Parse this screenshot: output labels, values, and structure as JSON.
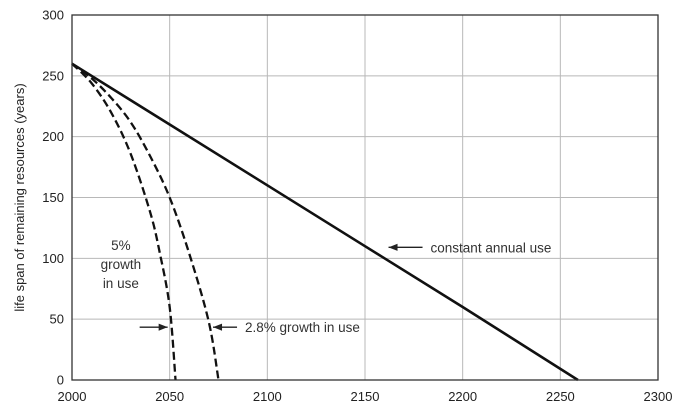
{
  "chart_data": {
    "type": "line",
    "xlabel": "",
    "ylabel": "life span of remaining resources (years)",
    "xlim": [
      2000,
      2300
    ],
    "ylim": [
      0,
      300
    ],
    "x_ticks": [
      2000,
      2050,
      2100,
      2150,
      2200,
      2250,
      2300
    ],
    "y_ticks": [
      0,
      50,
      100,
      150,
      200,
      250,
      300
    ],
    "grid": true,
    "series": [
      {
        "name": "constant annual use",
        "style": "solid",
        "color": "#111111",
        "points": [
          [
            2000,
            260
          ],
          [
            2050,
            210
          ],
          [
            2100,
            160
          ],
          [
            2150,
            110
          ],
          [
            2200,
            60
          ],
          [
            2259,
            0
          ]
        ]
      },
      {
        "name": "2.8% growth in use",
        "style": "dashed",
        "color": "#111111",
        "points": [
          [
            2000,
            260
          ],
          [
            2010,
            248
          ],
          [
            2020,
            232
          ],
          [
            2030,
            212
          ],
          [
            2040,
            184
          ],
          [
            2050,
            150
          ],
          [
            2060,
            104
          ],
          [
            2070,
            48
          ],
          [
            2075,
            0
          ]
        ]
      },
      {
        "name": "5% growth in use",
        "style": "dashed",
        "color": "#111111",
        "points": [
          [
            2000,
            260
          ],
          [
            2010,
            244
          ],
          [
            2020,
            220
          ],
          [
            2030,
            186
          ],
          [
            2040,
            138
          ],
          [
            2045,
            104
          ],
          [
            2050,
            60
          ],
          [
            2053,
            0
          ]
        ]
      }
    ],
    "annotations": [
      {
        "id": "constant",
        "text": "constant annual use"
      },
      {
        "id": "growth5",
        "lines": [
          "5%",
          "growth",
          "in use"
        ]
      },
      {
        "id": "growth28",
        "text": "2.8% growth in use"
      }
    ]
  }
}
